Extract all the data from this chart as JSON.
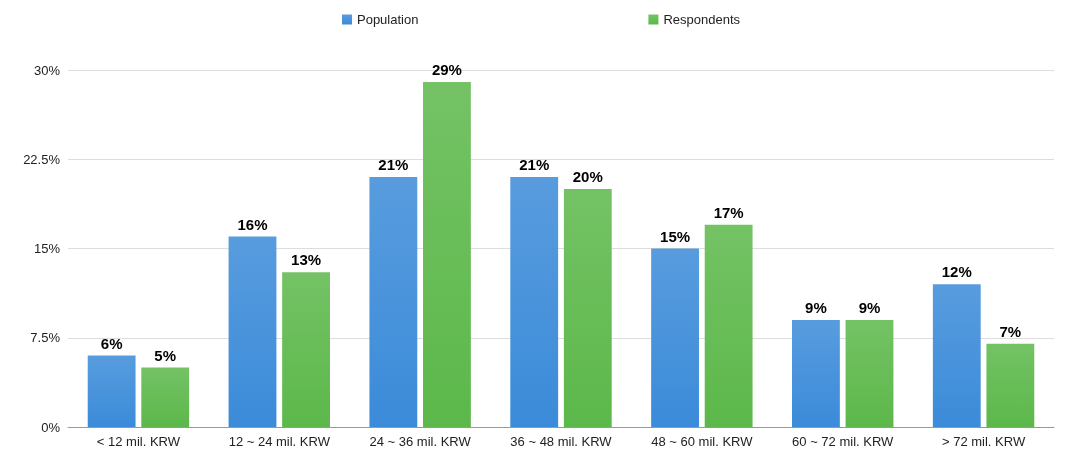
{
  "chart_data": {
    "type": "bar",
    "categories": [
      "< 12 mil. KRW",
      "12 ~ 24 mil. KRW",
      "24 ~ 36 mil. KRW",
      "36 ~ 48 mil. KRW",
      "48 ~ 60 mil. KRW",
      "60 ~ 72 mil. KRW",
      "> 72 mil. KRW"
    ],
    "series": [
      {
        "name": "Population",
        "color": "#3b8bd9",
        "values": [
          6,
          16,
          21,
          21,
          15,
          9,
          12
        ],
        "value_labels": [
          "6%",
          "16%",
          "21%",
          "21%",
          "15%",
          "9%",
          "12%"
        ]
      },
      {
        "name": "Respondents",
        "color": "#5cb84a",
        "values": [
          5,
          13,
          29,
          20,
          17,
          9,
          7
        ],
        "value_labels": [
          "5%",
          "13%",
          "29%",
          "20%",
          "17%",
          "9%",
          "7%"
        ]
      }
    ],
    "ylim": [
      0,
      30
    ],
    "yticks": [
      {
        "value": 0,
        "label": "0%"
      },
      {
        "value": 7.5,
        "label": "7.5%"
      },
      {
        "value": 15,
        "label": "15%"
      },
      {
        "value": 22.5,
        "label": "22.5%"
      },
      {
        "value": 30,
        "label": "30%"
      }
    ],
    "grid": "y",
    "legend": "top"
  }
}
